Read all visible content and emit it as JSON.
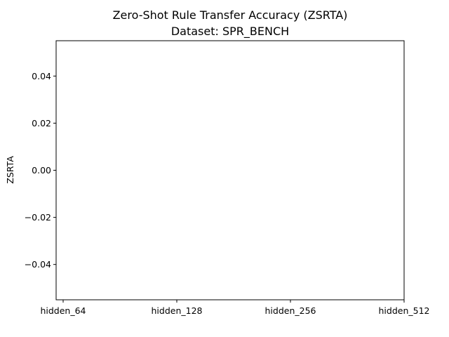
{
  "chart_data": {
    "type": "bar",
    "title": "Zero-Shot Rule Transfer Accuracy (ZSRTA)",
    "subtitle": "Dataset: SPR_BENCH",
    "xlabel": "",
    "ylabel": "ZSRTA",
    "categories": [
      "hidden_64",
      "hidden_128",
      "hidden_256",
      "hidden_512"
    ],
    "values": [
      0,
      0,
      0,
      0
    ],
    "ylim": [
      -0.055,
      0.055
    ],
    "yticks": [
      -0.04,
      -0.02,
      0.0,
      0.02,
      0.04
    ],
    "ytick_labels": [
      "−0.04",
      "−0.02",
      "0.00",
      "0.02",
      "0.04"
    ],
    "grid": false,
    "legend": "none",
    "colors": {
      "axis": "#000000",
      "bar": "#1f77b4",
      "background": "#ffffff"
    }
  }
}
